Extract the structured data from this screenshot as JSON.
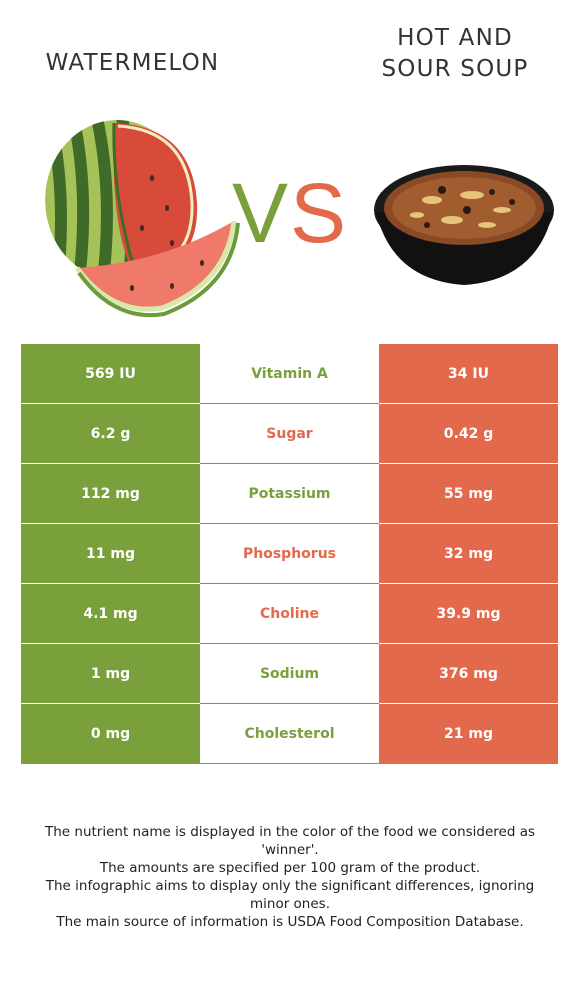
{
  "header": {
    "left_title": "WATERMELON",
    "right_title_line1": "HOT AND",
    "right_title_line2": "SOUR SOUP",
    "vs_v": "V",
    "vs_s": "S"
  },
  "colors": {
    "winner_left": "#79a03a",
    "winner_right": "#e3694c"
  },
  "icons": {
    "left_food": "watermelon-image",
    "right_food": "hot-and-sour-soup-image"
  },
  "rows": [
    {
      "left": "569 IU",
      "nutrient": "Vitamin A",
      "right": "34 IU",
      "winner": "left"
    },
    {
      "left": "6.2 g",
      "nutrient": "Sugar",
      "right": "0.42 g",
      "winner": "right"
    },
    {
      "left": "112 mg",
      "nutrient": "Potassium",
      "right": "55 mg",
      "winner": "left"
    },
    {
      "left": "11 mg",
      "nutrient": "Phosphorus",
      "right": "32 mg",
      "winner": "right"
    },
    {
      "left": "4.1 mg",
      "nutrient": "Choline",
      "right": "39.9 mg",
      "winner": "right"
    },
    {
      "left": "1 mg",
      "nutrient": "Sodium",
      "right": "376 mg",
      "winner": "left"
    },
    {
      "left": "0 mg",
      "nutrient": "Cholesterol",
      "right": "21 mg",
      "winner": "left"
    }
  ],
  "footer": {
    "line1": "The nutrient name is displayed in the color of the food we considered as 'winner'.",
    "line2": "The amounts are specified per 100 gram of the product.",
    "line3": "The infographic aims to display only the significant differences, ignoring minor ones.",
    "line4": "The main source of information is USDA Food Composition Database."
  }
}
